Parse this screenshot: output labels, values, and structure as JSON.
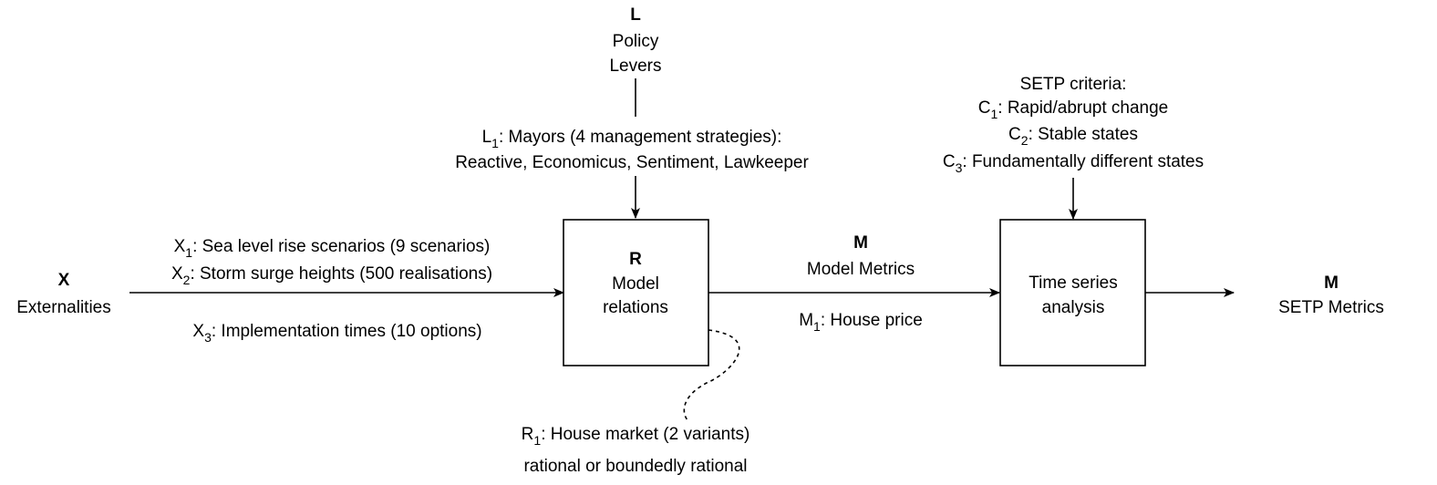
{
  "levers": {
    "symbol": "L",
    "title_line1": "Policy",
    "title_line2": "Levers",
    "l1_symbol": "L",
    "l1_sub": "1",
    "l1_text": ": Mayors (4 management strategies):",
    "l1_options": "Reactive, Economicus, Sentiment, Lawkeeper"
  },
  "externalities": {
    "symbol": "X",
    "title": "Externalities",
    "items": [
      {
        "symbol": "X",
        "sub": "1",
        "text": ": Sea level rise scenarios (9 scenarios)"
      },
      {
        "symbol": "X",
        "sub": "2",
        "text": ": Storm surge heights (500 realisations)"
      },
      {
        "symbol": "X",
        "sub": "3",
        "text": ": Implementation times (10 options)"
      }
    ]
  },
  "relations": {
    "symbol": "R",
    "title_line1": "Model",
    "title_line2": "relations",
    "r1_symbol": "R",
    "r1_sub": "1",
    "r1_text": ": House market (2 variants)",
    "r1_detail": "rational or boundedly rational"
  },
  "model_metrics": {
    "symbol": "M",
    "title": "Model Metrics",
    "m1_symbol": "M",
    "m1_sub": "1",
    "m1_text": ": House price"
  },
  "analysis": {
    "title_line1": "Time series",
    "title_line2": "analysis"
  },
  "criteria": {
    "heading": "SETP criteria:",
    "items": [
      {
        "symbol": "C",
        "sub": "1",
        "text": ": Rapid/abrupt change"
      },
      {
        "symbol": "C",
        "sub": "2",
        "text": ": Stable states"
      },
      {
        "symbol": "C",
        "sub": "3",
        "text": ": Fundamentally different states"
      }
    ]
  },
  "setp_metrics": {
    "symbol": "M",
    "title": "SETP Metrics"
  }
}
